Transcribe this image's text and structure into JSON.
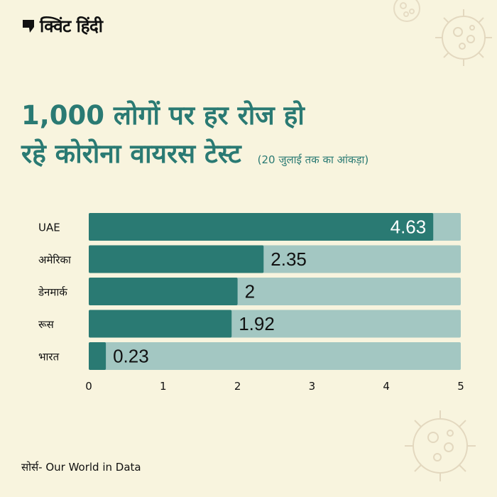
{
  "brand": {
    "name": "क्विंट हिंदी",
    "logo_icon": "quote-mark-icon",
    "virus_icon": "coronavirus-icon"
  },
  "headline": {
    "line1": "1,000 लोगों पर हर रोज हो",
    "line2": "रहे कोरोना वायरस टेस्ट",
    "note": "(20 जुलाई तक का आंकड़ा)"
  },
  "source": "सोर्स- Our World in Data",
  "colors": {
    "background": "#f8f4de",
    "bar": "#2a7a73",
    "track": "#a3c7c2",
    "title": "#2a7a73"
  },
  "chart_data": {
    "type": "bar",
    "orientation": "horizontal",
    "categories": [
      "UAE",
      "अमेरिका",
      "डेनमार्क",
      "रूस",
      "भारत"
    ],
    "values": [
      4.63,
      2.35,
      2,
      1.92,
      0.23
    ],
    "value_labels": [
      "4.63",
      "2.35",
      "2",
      "1.92",
      "0.23"
    ],
    "xlim": [
      0,
      5
    ],
    "xticks": [
      "0",
      "1",
      "2",
      "3",
      "4",
      "5"
    ],
    "grid": false
  }
}
